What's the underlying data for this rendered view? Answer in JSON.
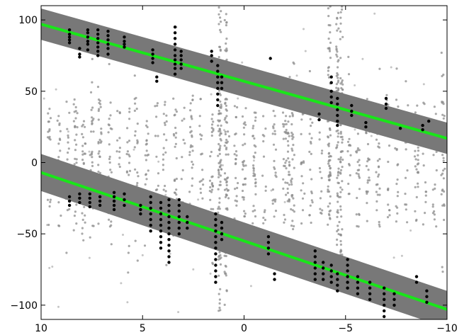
{
  "chart_data": {
    "type": "scatter",
    "title": "",
    "xlabel": "",
    "ylabel": "",
    "xlim": [
      10,
      -10
    ],
    "ylim": [
      -110,
      110
    ],
    "x_ticks": [
      10,
      5,
      0,
      -5,
      -10
    ],
    "x_tick_labels": [
      "10",
      "5",
      "0",
      "−5",
      "−10"
    ],
    "y_ticks": [
      100,
      50,
      0,
      -50,
      -100
    ],
    "y_tick_labels": [
      "100",
      "50",
      "0",
      "−50",
      "−100"
    ],
    "grid": false,
    "bands": [
      {
        "x": [
          10,
          -10
        ],
        "center": [
          97,
          17
        ],
        "half_width": 11
      },
      {
        "x": [
          10,
          -10
        ],
        "center": [
          -7,
          -103
        ],
        "half_width": 13
      }
    ],
    "fit_lines": [
      {
        "x": [
          10,
          -10
        ],
        "y": [
          97,
          17
        ]
      },
      {
        "x": [
          10,
          -10
        ],
        "y": [
          -7,
          -103
        ]
      }
    ],
    "background_column_x": [
      9.6,
      9.1,
      8.7,
      8.3,
      7.9,
      7.5,
      7.1,
      6.6,
      6.2,
      5.7,
      5.3,
      4.8,
      4.3,
      3.9,
      3.4,
      3.0,
      2.6,
      2.1,
      1.6,
      1.2,
      0.8,
      0.4,
      0.0,
      -0.5,
      -1.0,
      -1.5,
      -2.0,
      -2.4,
      -2.9,
      -3.3,
      -3.8,
      -4.2,
      -4.7,
      -5.2,
      -5.6,
      -6.1,
      -6.6,
      -7.1,
      -7.5,
      -8.0,
      -8.5,
      -8.9,
      -9.4,
      -9.8
    ],
    "background_long_columns": [
      {
        "x": 1.2,
        "y_range": [
          -110,
          110
        ]
      },
      {
        "x": 0.9,
        "y_range": [
          -100,
          110
        ]
      },
      {
        "x": -4.2,
        "y_range": [
          -40,
          110
        ]
      },
      {
        "x": -4.6,
        "y_range": [
          -60,
          110
        ]
      },
      {
        "x": -2.2,
        "y_range": [
          -30,
          60
        ]
      },
      {
        "x": -4.8,
        "y_range": [
          -90,
          110
        ]
      }
    ],
    "series_upper_clusters": [
      {
        "x": 8.6,
        "y": [
          93,
          90,
          88,
          86,
          84
        ]
      },
      {
        "x": 8.1,
        "y": [
          80,
          76,
          74
        ]
      },
      {
        "x": 7.7,
        "y": [
          93,
          91,
          88,
          85,
          83,
          79
        ]
      },
      {
        "x": 7.2,
        "y": [
          93,
          90,
          87,
          84,
          81,
          78,
          75
        ]
      },
      {
        "x": 6.7,
        "y": [
          92,
          89,
          86,
          83,
          80,
          76
        ]
      },
      {
        "x": 5.9,
        "y": [
          88,
          85,
          83,
          81
        ]
      },
      {
        "x": 4.5,
        "y": [
          79,
          76,
          73,
          70
        ]
      },
      {
        "x": 4.3,
        "y": [
          60,
          57
        ]
      },
      {
        "x": 3.4,
        "y": [
          95,
          91,
          87,
          83,
          79,
          75,
          72,
          69,
          66,
          62
        ]
      },
      {
        "x": 3.1,
        "y": [
          78,
          75,
          72,
          69,
          66
        ]
      },
      {
        "x": 1.6,
        "y": [
          78,
          75,
          71
        ]
      },
      {
        "x": 1.3,
        "y": [
          68,
          64,
          60,
          56,
          52,
          48,
          44,
          40
        ]
      },
      {
        "x": 1.1,
        "y": [
          60,
          56,
          52
        ]
      },
      {
        "x": -1.3,
        "y": [
          73
        ]
      },
      {
        "x": -3.7,
        "y": [
          34,
          30
        ]
      },
      {
        "x": -4.3,
        "y": [
          60,
          56,
          50,
          46,
          42
        ]
      },
      {
        "x": -4.6,
        "y": [
          45,
          41,
          37,
          33,
          29,
          26
        ]
      },
      {
        "x": -5.3,
        "y": [
          40,
          36,
          33
        ]
      },
      {
        "x": -6.0,
        "y": [
          28,
          25
        ]
      },
      {
        "x": -7.0,
        "y": [
          45,
          41,
          38
        ]
      },
      {
        "x": -7.7,
        "y": [
          24
        ]
      },
      {
        "x": -8.8,
        "y": [
          26,
          23
        ]
      },
      {
        "x": -9.1,
        "y": [
          29
        ]
      }
    ],
    "series_lower_clusters": [
      {
        "x": 8.6,
        "y": [
          -24,
          -27,
          -30
        ]
      },
      {
        "x": 8.1,
        "y": [
          -22,
          -25,
          -28
        ]
      },
      {
        "x": 7.6,
        "y": [
          -22,
          -25,
          -28,
          -31
        ]
      },
      {
        "x": 7.1,
        "y": [
          -24,
          -27,
          -30
        ]
      },
      {
        "x": 6.4,
        "y": [
          -21,
          -24,
          -27,
          -30,
          -33
        ]
      },
      {
        "x": 5.9,
        "y": [
          -22,
          -26,
          -30
        ]
      },
      {
        "x": 5.1,
        "y": [
          -30,
          -33,
          -36
        ]
      },
      {
        "x": 4.6,
        "y": [
          -24,
          -28,
          -32,
          -36,
          -40,
          -44,
          -48
        ]
      },
      {
        "x": 4.1,
        "y": [
          -28,
          -32,
          -36,
          -40,
          -44,
          -48,
          -52,
          -56,
          -60
        ]
      },
      {
        "x": 3.7,
        "y": [
          -26,
          -30,
          -34,
          -38,
          -42,
          -46,
          -50,
          -54,
          -58,
          -62,
          -66,
          -70
        ]
      },
      {
        "x": 3.2,
        "y": [
          -26,
          -30,
          -34,
          -38,
          -42,
          -46,
          -50
        ]
      },
      {
        "x": 2.8,
        "y": [
          -38,
          -42,
          -46
        ]
      },
      {
        "x": 1.4,
        "y": [
          -36,
          -40,
          -44,
          -48,
          -52,
          -56,
          -60,
          -64,
          -68,
          -72,
          -76,
          -80,
          -84
        ]
      },
      {
        "x": 1.1,
        "y": [
          -42,
          -46,
          -50,
          -54
        ]
      },
      {
        "x": -1.2,
        "y": [
          -52,
          -56,
          -60,
          -64
        ]
      },
      {
        "x": -1.5,
        "y": [
          -78,
          -82
        ]
      },
      {
        "x": -3.5,
        "y": [
          -62,
          -66,
          -70,
          -74,
          -78,
          -82
        ]
      },
      {
        "x": -3.9,
        "y": [
          -70,
          -74,
          -78,
          -82
        ]
      },
      {
        "x": -4.3,
        "y": [
          -72,
          -76,
          -80,
          -84
        ]
      },
      {
        "x": -4.6,
        "y": [
          -78,
          -82,
          -86,
          -90
        ]
      },
      {
        "x": -5.1,
        "y": [
          -68,
          -72,
          -76,
          -80,
          -84,
          -88
        ]
      },
      {
        "x": -5.6,
        "y": [
          -80,
          -84,
          -88,
          -92
        ]
      },
      {
        "x": -6.2,
        "y": [
          -84,
          -88,
          -92,
          -96
        ]
      },
      {
        "x": -6.9,
        "y": [
          -88,
          -92,
          -96,
          -100,
          -104,
          -108
        ]
      },
      {
        "x": -7.4,
        "y": [
          -92,
          -96,
          -100
        ]
      },
      {
        "x": -8.5,
        "y": [
          -80,
          -84
        ]
      },
      {
        "x": -9.0,
        "y": [
          -90,
          -94,
          -98
        ]
      }
    ],
    "colors": {
      "background_points": "#8c8c8c",
      "band_fill": "#787878",
      "fit_line": "#19e619",
      "points": "#000000",
      "axes": "#000000"
    }
  }
}
